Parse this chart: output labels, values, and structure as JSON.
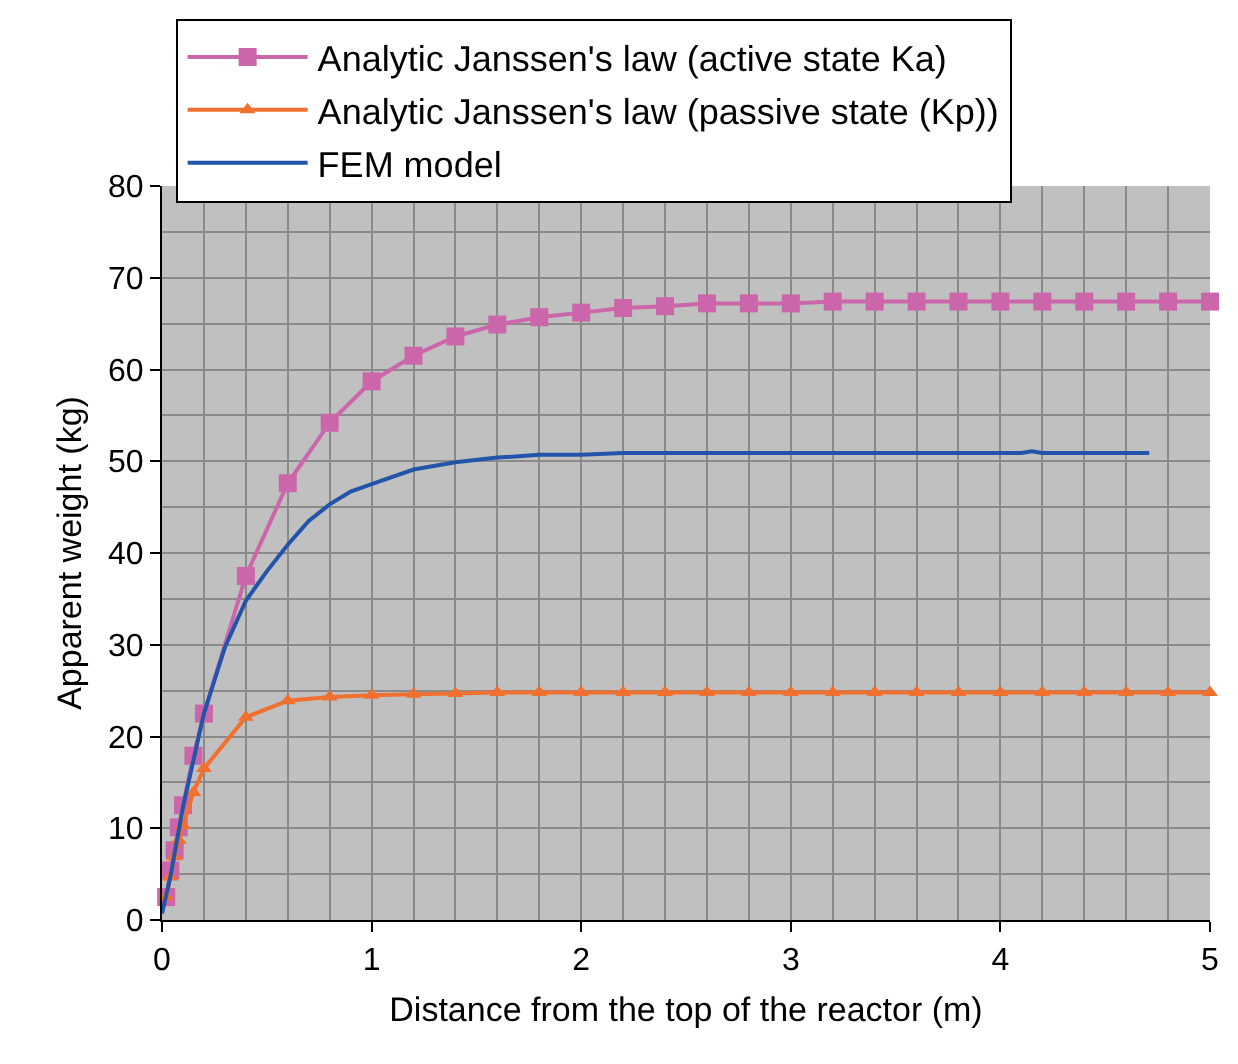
{
  "chart_data": {
    "type": "line",
    "xlabel": "Distance from the top of the reactor (m)",
    "ylabel": "Apparent weight (kg)",
    "xlim": [
      0,
      5
    ],
    "ylim": [
      0,
      80
    ],
    "xticks": [
      0,
      1,
      2,
      3,
      4,
      5
    ],
    "yticks": [
      0,
      10,
      20,
      30,
      40,
      50,
      60,
      70,
      80
    ],
    "grid": true,
    "legend": "top",
    "series": [
      {
        "name": "Analytic Janssen's law (active state Ka)",
        "color": "#cc66aa",
        "marker": "square",
        "x": [
          0.02,
          0.04,
          0.06,
          0.08,
          0.1,
          0.15,
          0.2,
          0.4,
          0.6,
          0.8,
          1.0,
          1.2,
          1.4,
          1.6,
          1.8,
          2.0,
          2.2,
          2.4,
          2.6,
          2.8,
          3.0,
          3.2,
          3.4,
          3.6,
          3.8,
          4.0,
          4.2,
          4.4,
          4.6,
          4.8,
          5.0
        ],
        "values": [
          2.5,
          5.4,
          7.6,
          10.1,
          12.5,
          17.9,
          22.5,
          37.5,
          47.6,
          54.2,
          58.7,
          61.5,
          63.6,
          64.9,
          65.7,
          66.2,
          66.7,
          66.9,
          67.2,
          67.2,
          67.2,
          67.4,
          67.4,
          67.4,
          67.4,
          67.4,
          67.4,
          67.4,
          67.4,
          67.4,
          67.4
        ]
      },
      {
        "name": "Analytic Janssen's law (passive state (Kp))",
        "color": "#f07030",
        "marker": "triangle",
        "x": [
          0.02,
          0.04,
          0.06,
          0.08,
          0.1,
          0.15,
          0.2,
          0.4,
          0.6,
          0.8,
          1.0,
          1.2,
          1.4,
          1.6,
          1.8,
          2.0,
          2.2,
          2.4,
          2.6,
          2.8,
          3.0,
          3.2,
          3.4,
          3.6,
          3.8,
          4.0,
          4.2,
          4.4,
          4.6,
          4.8,
          5.0
        ],
        "values": [
          2.5,
          4.7,
          6.9,
          8.7,
          10.3,
          13.9,
          16.5,
          22.1,
          23.9,
          24.3,
          24.5,
          24.6,
          24.7,
          24.8,
          24.8,
          24.8,
          24.8,
          24.8,
          24.8,
          24.8,
          24.8,
          24.8,
          24.8,
          24.8,
          24.8,
          24.8,
          24.8,
          24.8,
          24.8,
          24.8,
          24.8
        ]
      },
      {
        "name": "FEM model",
        "color": "#2255aa",
        "marker": "none",
        "x": [
          0.0,
          0.04,
          0.1,
          0.2,
          0.3,
          0.4,
          0.5,
          0.6,
          0.7,
          0.8,
          0.9,
          1.0,
          1.2,
          1.4,
          1.6,
          1.8,
          2.0,
          2.2,
          3.0,
          4.1,
          4.15,
          4.2,
          4.71
        ],
        "values": [
          0.7,
          4.7,
          12.3,
          22.5,
          29.7,
          34.8,
          38.0,
          40.9,
          43.5,
          45.3,
          46.7,
          47.5,
          49.1,
          49.9,
          50.4,
          50.7,
          50.7,
          50.9,
          50.9,
          50.9,
          51.1,
          50.9,
          50.9
        ]
      }
    ]
  }
}
